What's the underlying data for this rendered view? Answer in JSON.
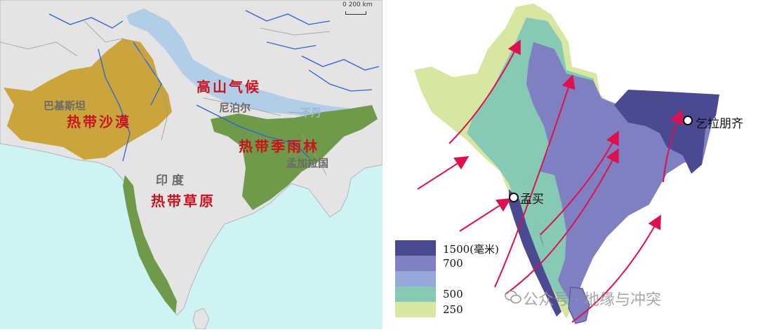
{
  "left_map": {
    "scale_label": "0    200 km",
    "regions": {
      "highland": "高山气候",
      "desert": "热带沙漠",
      "monsoon_forest": "热带季雨林",
      "savanna": "热带草原"
    },
    "countries": {
      "pakistan": "巴基斯坦",
      "nepal": "尼泊尔",
      "bhutan": "不丹",
      "bangladesh": "孟加拉国",
      "india": "印  度"
    },
    "colors": {
      "sea": "#cdf3f5",
      "land": "#e4e4e4",
      "desert": "#c9a53c",
      "forest": "#6e9a4a",
      "highland": "#b2cde8",
      "rivers": "#2a62d6",
      "label_red": "#c8141e"
    }
  },
  "right_map": {
    "legend": [
      {
        "label": "1500(毫米)",
        "color": "#4a4a92"
      },
      {
        "label": "700",
        "color": "#7f80c2"
      },
      {
        "label": "",
        "color": "#96a7dc"
      },
      {
        "label": "500",
        "color": "#86c9b5"
      },
      {
        "label": "250",
        "color": "#d7e6a0"
      }
    ],
    "cities": {
      "mumbai": "孟买",
      "cherrapunji": "乞拉朋齐"
    },
    "arrow_color": "#dd1150"
  },
  "watermark": "公众号 · 地缘与冲突"
}
